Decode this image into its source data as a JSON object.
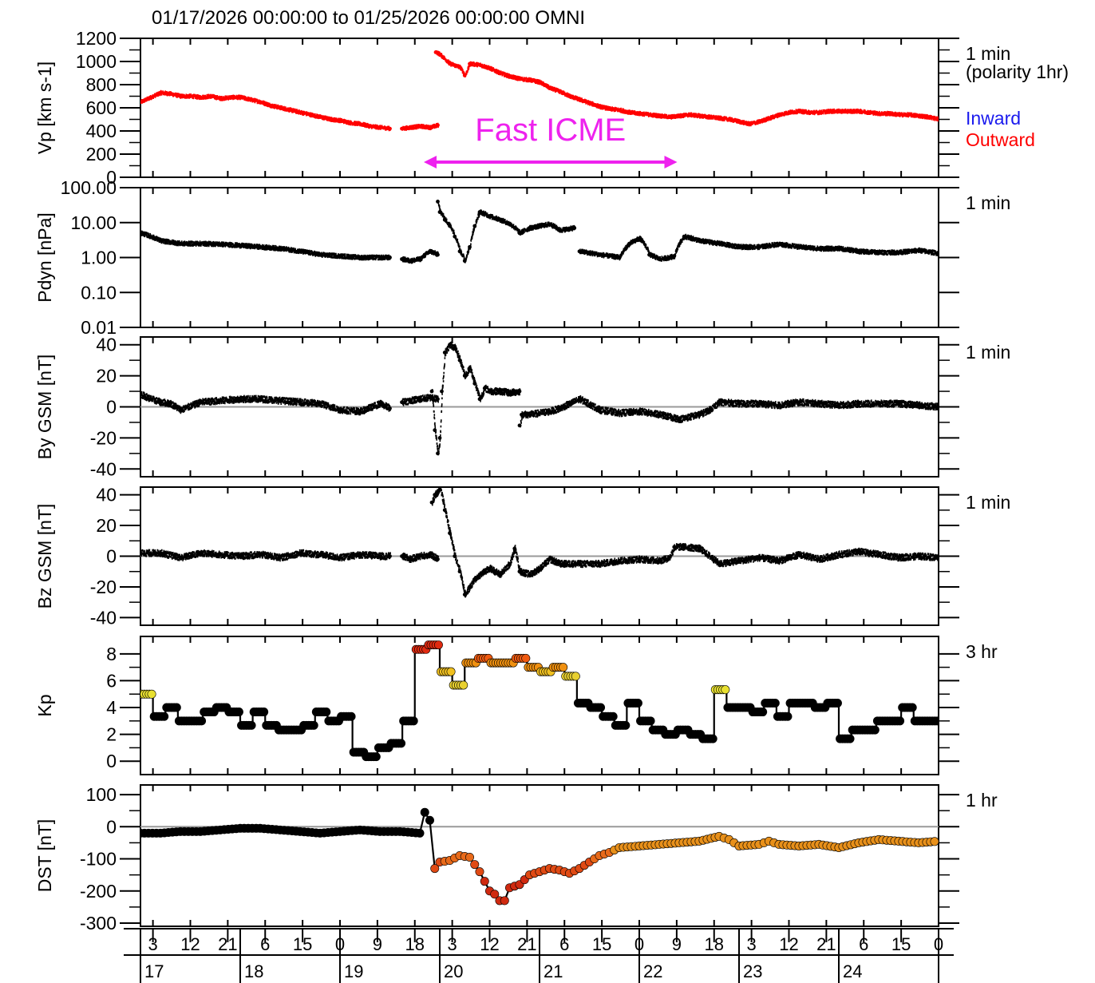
{
  "title": "01/17/2026 00:00:00 to 01/25/2026 00:00:00   OMNI",
  "annotation": {
    "label": "Fast ICME",
    "x_start": 19.84,
    "x_end": 22.38,
    "color": "#ee22ee"
  },
  "time_axis": {
    "hour_ticks": [
      "3",
      "12",
      "21",
      "6",
      "15",
      "0",
      "9",
      "18",
      "3",
      "12",
      "21",
      "6",
      "15",
      "0",
      "9",
      "18",
      "3",
      "12",
      "21",
      "6",
      "15",
      "0"
    ],
    "hour_tick_values": [
      17.125,
      17.5,
      17.875,
      18.25,
      18.625,
      19.0,
      19.375,
      19.75,
      20.125,
      20.5,
      20.875,
      21.25,
      21.625,
      22.0,
      22.375,
      22.75,
      23.125,
      23.5,
      23.875,
      24.25,
      24.625,
      25.0
    ],
    "day_labels": [
      "17",
      "18",
      "19",
      "20",
      "21",
      "22",
      "23",
      "24"
    ],
    "range": [
      17,
      25
    ]
  },
  "legend": {
    "inward": "Inward",
    "outward": "Outward",
    "inward_color": "#1a1aee",
    "outward_color": "#ff0000"
  },
  "chart_data": [
    {
      "type": "scatter",
      "ylabel": "Vp [km s-1]",
      "cadence": "1 min",
      "cadence2": "(polarity 1hr)",
      "ylim": [
        0,
        1200
      ],
      "yticks": [
        0,
        200,
        400,
        600,
        800,
        1000,
        1200
      ],
      "color": "#ff0000",
      "series": [
        {
          "x": [
            17.0,
            17.1,
            17.2,
            17.3,
            17.4,
            17.5,
            17.6,
            17.7,
            17.8,
            17.9,
            18.0,
            18.1,
            18.2,
            18.3,
            18.4,
            18.5,
            18.6,
            18.7,
            18.8,
            18.9,
            19.0,
            19.1,
            19.2,
            19.3,
            19.4,
            19.5
          ],
          "y": [
            650,
            690,
            730,
            720,
            700,
            700,
            690,
            700,
            680,
            690,
            690,
            670,
            650,
            620,
            600,
            580,
            560,
            540,
            520,
            500,
            490,
            470,
            460,
            440,
            430,
            420
          ]
        },
        {
          "x": [
            19.62,
            19.7,
            19.8,
            19.9,
            19.98
          ],
          "y": [
            420,
            430,
            440,
            430,
            450
          ]
        },
        {
          "x": [
            19.96,
            20.0,
            20.1,
            20.2,
            20.25,
            20.3,
            20.4,
            20.5,
            20.6,
            20.7,
            20.8,
            20.9,
            21.0,
            21.1,
            21.2,
            21.3,
            21.4,
            21.5,
            21.6,
            21.7,
            21.8,
            21.9,
            22.0,
            22.1,
            22.2,
            22.3,
            22.4,
            22.5,
            22.6,
            22.7,
            22.8,
            22.9,
            23.0,
            23.1,
            23.2,
            23.3,
            23.4,
            23.5,
            23.6,
            23.7,
            23.8,
            23.9,
            24.0,
            24.1,
            24.2,
            24.3,
            24.4,
            24.5,
            24.6,
            24.7,
            24.8,
            24.9,
            25.0
          ],
          "y": [
            1080,
            1060,
            980,
            950,
            880,
            980,
            970,
            940,
            900,
            870,
            850,
            840,
            820,
            770,
            740,
            700,
            670,
            640,
            610,
            590,
            580,
            560,
            550,
            540,
            530,
            520,
            530,
            540,
            530,
            520,
            510,
            500,
            480,
            460,
            480,
            510,
            540,
            560,
            570,
            560,
            560,
            570,
            570,
            570,
            570,
            560,
            550,
            550,
            540,
            540,
            530,
            520,
            500
          ]
        }
      ]
    },
    {
      "type": "scatter",
      "ylabel": "Pdyn [nPa]",
      "cadence": "1 min",
      "scale": "log",
      "ylim": [
        0.01,
        100
      ],
      "ytick_labels": [
        "0.01",
        "0.10",
        "1.00",
        "10.00",
        "100.00"
      ],
      "color": "#000000",
      "series": [
        {
          "x": [
            17.0,
            17.2,
            17.4,
            17.6,
            17.8,
            18.0,
            18.2,
            18.4,
            18.6,
            18.8,
            19.0,
            19.2,
            19.4,
            19.5
          ],
          "y": [
            5.0,
            3.0,
            2.5,
            2.5,
            2.4,
            2.2,
            2.0,
            1.8,
            1.5,
            1.2,
            1.1,
            1.0,
            1.0,
            1.0
          ]
        },
        {
          "x": [
            19.62,
            19.7,
            19.8,
            19.85,
            19.9,
            19.98
          ],
          "y": [
            0.9,
            0.8,
            0.9,
            1.2,
            1.5,
            1.2
          ]
        },
        {
          "x": [
            19.98,
            20.0,
            20.05,
            20.1,
            20.15,
            20.2,
            20.25,
            20.3,
            20.35,
            20.4,
            20.5,
            20.6,
            20.7,
            20.8,
            20.9,
            21.0,
            21.1,
            21.2,
            21.35
          ],
          "y": [
            40,
            20,
            12,
            8,
            4,
            1.5,
            0.8,
            2,
            8,
            20,
            15,
            12,
            9,
            5,
            7,
            8,
            9,
            6,
            7
          ]
        },
        {
          "x": [
            21.4,
            21.6,
            21.8,
            21.9,
            22.0,
            22.1,
            22.2,
            22.3,
            22.35,
            22.45,
            22.6,
            22.8,
            23.0,
            23.2,
            23.4,
            23.6,
            23.8,
            24.0,
            24.2,
            24.4,
            24.6,
            24.8,
            25.0
          ],
          "y": [
            1.5,
            1.2,
            1.0,
            2.5,
            3.5,
            1.2,
            0.9,
            1.0,
            1.1,
            4.0,
            3.0,
            2.5,
            2.0,
            2.0,
            2.4,
            2.0,
            1.8,
            1.8,
            1.5,
            1.4,
            1.4,
            1.6,
            1.3
          ]
        }
      ]
    },
    {
      "type": "scatter",
      "ylabel": "By GSM [nT]",
      "cadence": "1 min",
      "ylim": [
        -45,
        45
      ],
      "yticks": [
        -40,
        -20,
        0,
        20,
        40
      ],
      "zero_line": true,
      "color": "#000000",
      "series": [
        {
          "x": [
            17.0,
            17.1,
            17.2,
            17.3,
            17.4,
            17.6,
            17.8,
            18.0,
            18.2,
            18.4,
            18.6,
            18.8,
            19.0,
            19.2,
            19.4,
            19.5
          ],
          "y": [
            8,
            5,
            3,
            2,
            -2,
            3,
            4,
            5,
            5,
            4,
            3,
            2,
            -2,
            -3,
            2,
            -1
          ]
        },
        {
          "x": [
            19.62,
            19.7,
            19.8,
            19.9,
            19.98
          ],
          "y": [
            3,
            4,
            5,
            6,
            5
          ]
        },
        {
          "x": [
            19.92,
            19.95,
            19.98,
            20.0,
            20.02,
            20.05,
            20.1,
            20.15,
            20.2,
            20.25,
            20.3,
            20.35,
            20.4,
            20.45,
            20.5,
            20.6,
            20.7,
            20.8
          ],
          "y": [
            10,
            -15,
            -30,
            -20,
            10,
            35,
            40,
            38,
            30,
            20,
            25,
            15,
            5,
            12,
            10,
            10,
            9,
            10
          ]
        },
        {
          "x": [
            20.8,
            20.82,
            20.9,
            21.0,
            21.1,
            21.2,
            21.4,
            21.6,
            21.8,
            22.0,
            22.2,
            22.4,
            22.6,
            22.7,
            22.8,
            23.0,
            23.2,
            23.4,
            23.6,
            23.8,
            24.0,
            24.2,
            24.4,
            24.6,
            24.8,
            25.0
          ],
          "y": [
            -12,
            -5,
            -5,
            -4,
            -3,
            -1,
            5,
            -2,
            -4,
            -3,
            -5,
            -8,
            -5,
            -2,
            3,
            2,
            2,
            1,
            3,
            2,
            1,
            2,
            2,
            2,
            1,
            0
          ]
        }
      ]
    },
    {
      "type": "scatter",
      "ylabel": "Bz GSM [nT]",
      "cadence": "1 min",
      "ylim": [
        -45,
        45
      ],
      "yticks": [
        -40,
        -20,
        0,
        20,
        40
      ],
      "zero_line": true,
      "color": "#000000",
      "series": [
        {
          "x": [
            17.0,
            17.2,
            17.4,
            17.6,
            17.8,
            18.0,
            18.2,
            18.4,
            18.6,
            18.8,
            19.0,
            19.2,
            19.4,
            19.5
          ],
          "y": [
            2,
            2,
            -1,
            2,
            1,
            0,
            1,
            -1,
            2,
            1,
            -1,
            1,
            0,
            0
          ]
        },
        {
          "x": [
            19.62,
            19.7,
            19.8,
            19.9,
            19.98
          ],
          "y": [
            0,
            -2,
            0,
            1,
            -2
          ]
        },
        {
          "x": [
            19.92,
            19.95,
            19.98,
            20.0,
            20.05,
            20.1,
            20.15,
            20.2,
            20.25,
            20.3,
            20.35,
            20.4,
            20.5,
            20.6,
            20.7,
            20.75,
            20.8
          ],
          "y": [
            35,
            40,
            42,
            45,
            30,
            15,
            0,
            -10,
            -25,
            -20,
            -15,
            -12,
            -8,
            -12,
            -5,
            5,
            -10
          ]
        },
        {
          "x": [
            20.8,
            20.9,
            21.0,
            21.1,
            21.2,
            21.4,
            21.6,
            21.8,
            22.0,
            22.2,
            22.3,
            22.35,
            22.45,
            22.6,
            22.8,
            23.0,
            23.2,
            23.4,
            23.6,
            23.8,
            24.0,
            24.2,
            24.4,
            24.6,
            24.8,
            25.0
          ],
          "y": [
            -10,
            -12,
            -8,
            -2,
            -5,
            -5,
            -5,
            -3,
            -2,
            -3,
            -1,
            6,
            6,
            5,
            -5,
            -3,
            -1,
            -3,
            1,
            -2,
            1,
            3,
            1,
            -1,
            0,
            -1
          ]
        }
      ]
    },
    {
      "type": "line",
      "ylabel": "Kp",
      "cadence": "3 hr",
      "ylim": [
        -1,
        9.3
      ],
      "yticks": [
        0,
        2,
        4,
        6,
        8
      ],
      "color_scale": "black below 5, then yellow to red with increasing Kp",
      "x": [
        17.0625,
        17.1875,
        17.3125,
        17.4375,
        17.5625,
        17.6875,
        17.8125,
        17.9375,
        18.0625,
        18.1875,
        18.3125,
        18.4375,
        18.5625,
        18.6875,
        18.8125,
        18.9375,
        19.0625,
        19.1875,
        19.3125,
        19.4375,
        19.5625,
        19.6875,
        19.8125,
        19.9375,
        20.0625,
        20.1875,
        20.3125,
        20.4375,
        20.5625,
        20.6875,
        20.8125,
        20.9375,
        21.0625,
        21.1875,
        21.3125,
        21.4375,
        21.5625,
        21.6875,
        21.8125,
        21.9375,
        22.0625,
        22.1875,
        22.3125,
        22.4375,
        22.5625,
        22.6875,
        22.8125,
        22.9375,
        23.0625,
        23.1875,
        23.3125,
        23.4375,
        23.5625,
        23.6875,
        23.8125,
        23.9375,
        24.0625,
        24.1875,
        24.3125,
        24.4375,
        24.5625,
        24.6875,
        24.8125,
        24.9375
      ],
      "y": [
        5.0,
        3.33,
        4.0,
        3.0,
        3.0,
        3.67,
        4.0,
        3.67,
        2.67,
        3.67,
        2.67,
        2.33,
        2.33,
        2.67,
        3.67,
        3.0,
        3.33,
        0.67,
        0.33,
        1.0,
        1.33,
        3.0,
        8.33,
        8.67,
        6.67,
        5.67,
        7.33,
        7.67,
        7.33,
        7.33,
        7.67,
        7.0,
        6.67,
        7.0,
        6.33,
        4.33,
        4.0,
        3.33,
        2.67,
        4.33,
        3.0,
        2.33,
        2.0,
        2.33,
        2.0,
        1.67,
        5.33,
        4.0,
        4.0,
        3.67,
        4.33,
        3.33,
        4.33,
        4.33,
        4.0,
        4.33,
        1.67,
        2.33,
        2.33,
        3.0,
        3.0,
        4.0,
        3.0,
        3.0
      ]
    },
    {
      "type": "line",
      "ylabel": "DST [nT]",
      "cadence": "1 hr",
      "ylim": [
        -310,
        130
      ],
      "yticks": [
        -300,
        -200,
        -100,
        0,
        100
      ],
      "zero_line": true,
      "color_scale": "black above -30, orange to red as DST decreases",
      "x": [
        17.0,
        17.2,
        17.4,
        17.6,
        17.8,
        18.0,
        18.2,
        18.4,
        18.6,
        18.8,
        19.0,
        19.2,
        19.4,
        19.6,
        19.8,
        19.85,
        19.9,
        19.95,
        20.0,
        20.1,
        20.2,
        20.3,
        20.4,
        20.5,
        20.55,
        20.6,
        20.65,
        20.7,
        20.8,
        20.9,
        21.0,
        21.1,
        21.2,
        21.3,
        21.4,
        21.5,
        21.6,
        21.7,
        21.8,
        22.0,
        22.2,
        22.4,
        22.6,
        22.8,
        22.9,
        23.0,
        23.2,
        23.3,
        23.4,
        23.6,
        23.8,
        24.0,
        24.2,
        24.4,
        24.6,
        24.8,
        25.0
      ],
      "y": [
        -20,
        -20,
        -15,
        -15,
        -10,
        -5,
        -5,
        -10,
        -15,
        -20,
        -15,
        -10,
        -15,
        -15,
        -20,
        45,
        20,
        -130,
        -110,
        -105,
        -90,
        -95,
        -140,
        -200,
        -210,
        -230,
        -230,
        -190,
        -180,
        -150,
        -140,
        -130,
        -135,
        -145,
        -130,
        -110,
        -90,
        -80,
        -65,
        -60,
        -55,
        -50,
        -45,
        -30,
        -40,
        -60,
        -55,
        -45,
        -55,
        -60,
        -55,
        -65,
        -50,
        -40,
        -45,
        -50,
        -45
      ]
    }
  ]
}
